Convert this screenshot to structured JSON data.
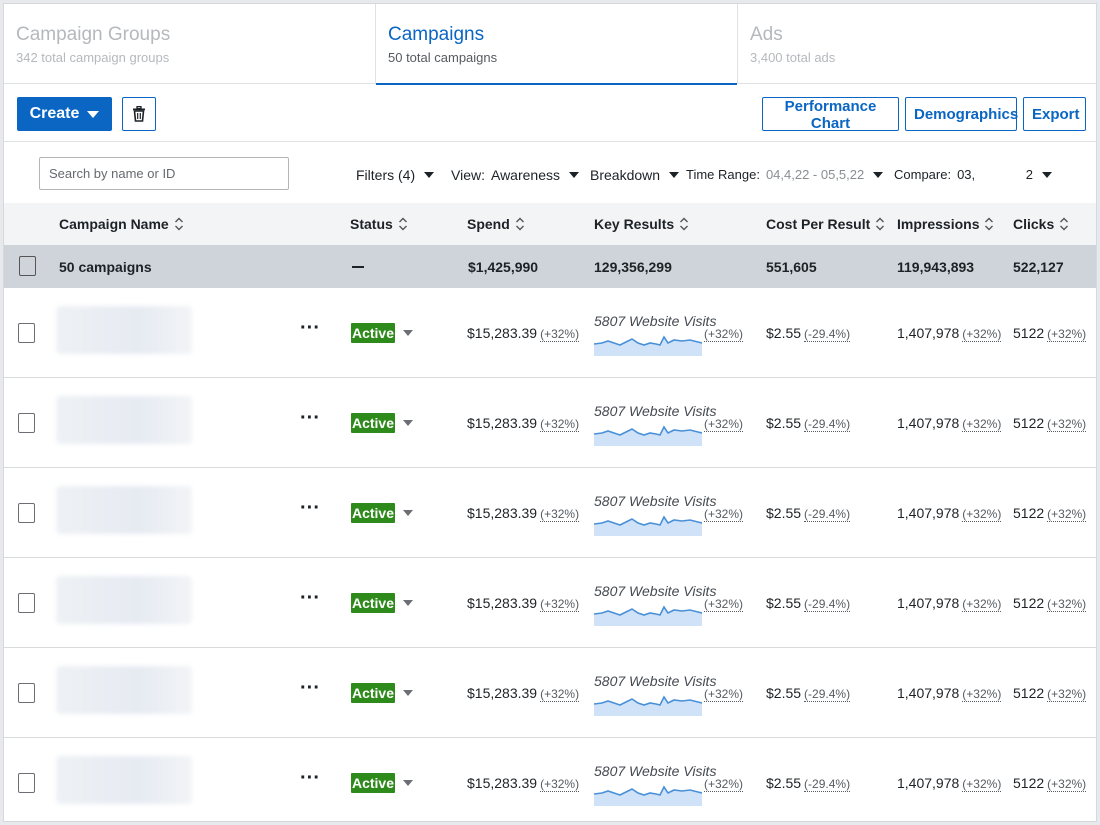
{
  "tabs": [
    {
      "title": "Campaign Groups",
      "subtitle": "342 total campaign groups",
      "active": false
    },
    {
      "title": "Campaigns",
      "subtitle": "50 total campaigns",
      "active": true
    },
    {
      "title": "Ads",
      "subtitle": "3,400 total ads",
      "active": false
    }
  ],
  "toolbar": {
    "create_label": "Create",
    "delete_icon": "trash-icon",
    "performance_chart_label": "Performance Chart",
    "demographics_label": "Demographics",
    "export_label": "Export"
  },
  "filters": {
    "search_placeholder": "Search by name or ID",
    "filters_label": "Filters (4)",
    "view_label": "View:",
    "view_value": "Awareness",
    "breakdown_label": "Breakdown",
    "time_range_label": "Time Range:",
    "time_range_value": "04,4,22 - 05,5,22",
    "compare_label": "Compare:",
    "compare_value": "03,              2"
  },
  "colors": {
    "accent": "#0a66c2",
    "active_badge": "#2e8b1b",
    "summary_row": "#cfd4da",
    "sparkline": "#4a90d9",
    "sparkline_fill": "#cfe2f7"
  },
  "table": {
    "headers": {
      "name": "Campaign Name",
      "status": "Status",
      "spend": "Spend",
      "key_results": "Key Results",
      "cost_per_result": "Cost Per Result",
      "impressions": "Impressions",
      "clicks": "Clicks"
    },
    "summary": {
      "name": "50 campaigns",
      "status": "—",
      "spend": "$1,425,990",
      "key_results": "129,356,299",
      "cost_per_result": "551,605",
      "impressions": "119,943,893",
      "clicks": "522,127"
    },
    "rows": [
      {
        "status": "Active",
        "spend": "$15,283.39",
        "spend_delta": "(+32%)",
        "kr_label": "5807 Website Visits",
        "kr_delta": "(+32%)",
        "cpr": "$2.55",
        "cpr_delta": "(-29.4%)",
        "impressions": "1,407,978",
        "impressions_delta": "(+32%)",
        "clicks": "5122",
        "clicks_delta": "(+32%)"
      },
      {
        "status": "Active",
        "spend": "$15,283.39",
        "spend_delta": "(+32%)",
        "kr_label": "5807 Website Visits",
        "kr_delta": "(+32%)",
        "cpr": "$2.55",
        "cpr_delta": "(-29.4%)",
        "impressions": "1,407,978",
        "impressions_delta": "(+32%)",
        "clicks": "5122",
        "clicks_delta": "(+32%)"
      },
      {
        "status": "Active",
        "spend": "$15,283.39",
        "spend_delta": "(+32%)",
        "kr_label": "5807 Website Visits",
        "kr_delta": "(+32%)",
        "cpr": "$2.55",
        "cpr_delta": "(-29.4%)",
        "impressions": "1,407,978",
        "impressions_delta": "(+32%)",
        "clicks": "5122",
        "clicks_delta": "(+32%)"
      },
      {
        "status": "Active",
        "spend": "$15,283.39",
        "spend_delta": "(+32%)",
        "kr_label": "5807 Website Visits",
        "kr_delta": "(+32%)",
        "cpr": "$2.55",
        "cpr_delta": "(-29.4%)",
        "impressions": "1,407,978",
        "impressions_delta": "(+32%)",
        "clicks": "5122",
        "clicks_delta": "(+32%)"
      },
      {
        "status": "Active",
        "spend": "$15,283.39",
        "spend_delta": "(+32%)",
        "kr_label": "5807 Website Visits",
        "kr_delta": "(+32%)",
        "cpr": "$2.55",
        "cpr_delta": "(-29.4%)",
        "impressions": "1,407,978",
        "impressions_delta": "(+32%)",
        "clicks": "5122",
        "clicks_delta": "(+32%)"
      },
      {
        "status": "Active",
        "spend": "$15,283.39",
        "spend_delta": "(+32%)",
        "kr_label": "5807 Website Visits",
        "kr_delta": "(+32%)",
        "cpr": "$2.55",
        "cpr_delta": "(-29.4%)",
        "impressions": "1,407,978",
        "impressions_delta": "(+32%)",
        "clicks": "5122",
        "clicks_delta": "(+32%)"
      }
    ]
  }
}
